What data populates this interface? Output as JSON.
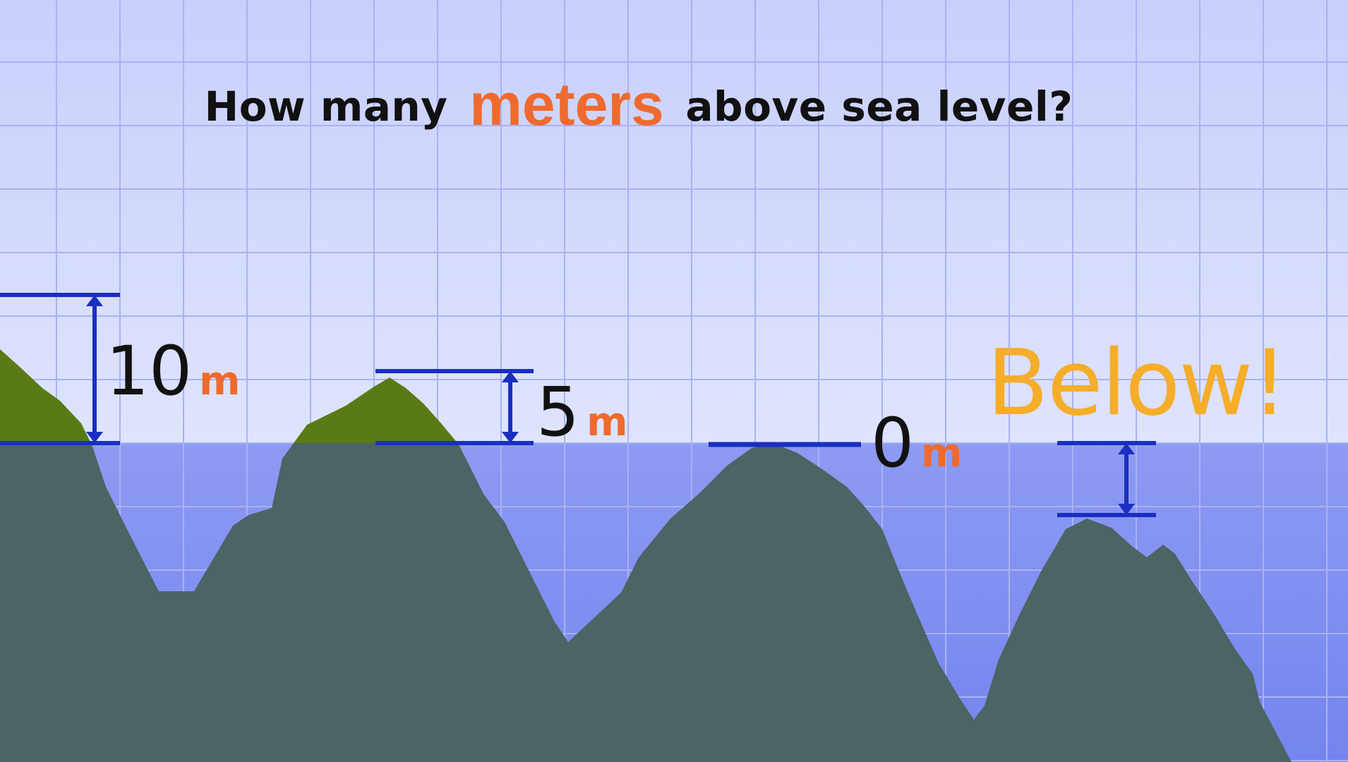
{
  "question": {
    "before": "How many",
    "highlight": "meters",
    "after": "above sea level?"
  },
  "labels": [
    {
      "value": "10",
      "unit": "m"
    },
    {
      "value": "5",
      "unit": "m"
    },
    {
      "value": "0",
      "unit": "m"
    }
  ],
  "below_text": "Below!",
  "colors": {
    "sky": "#cfd6fc",
    "sea": "#7d8df0",
    "grid": "#a9b2f2",
    "land_above_water": "#5a7a15",
    "land_below_water": "#4b6464",
    "marker": "#1a2fc0",
    "highlight_text": "#ef6a2e",
    "below_text": "#f5ad2a"
  }
}
